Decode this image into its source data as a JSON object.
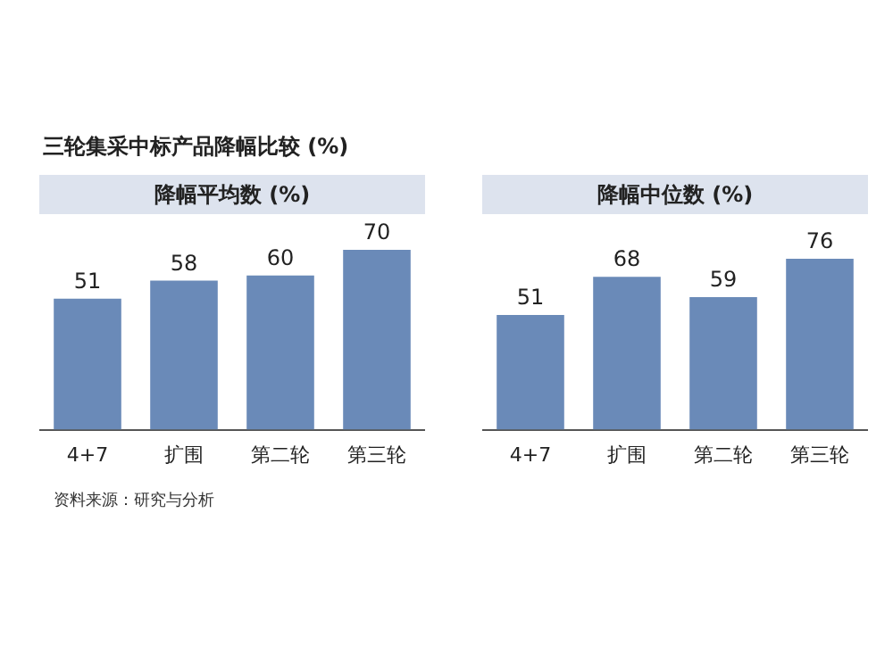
{
  "chart_data": [
    {
      "type": "other",
      "title": "三轮集采中标产品降幅比较 (%)",
      "annotations": [
        "资料来源：研究与分析"
      ]
    },
    {
      "type": "bar",
      "title": "降幅平均数 (%)",
      "categories": [
        "4+7",
        "扩围",
        "第二轮",
        "第三轮"
      ],
      "values": [
        51,
        58,
        60,
        70
      ],
      "color": "#6a8ab8",
      "data_labels": true,
      "grid": false,
      "legend": false
    },
    {
      "type": "bar",
      "title": "降幅中位数 (%)",
      "categories": [
        "4+7",
        "扩围",
        "第二轮",
        "第三轮"
      ],
      "values": [
        51,
        68,
        59,
        76
      ],
      "color": "#6a8ab8",
      "data_labels": true,
      "grid": false,
      "legend": false
    }
  ]
}
